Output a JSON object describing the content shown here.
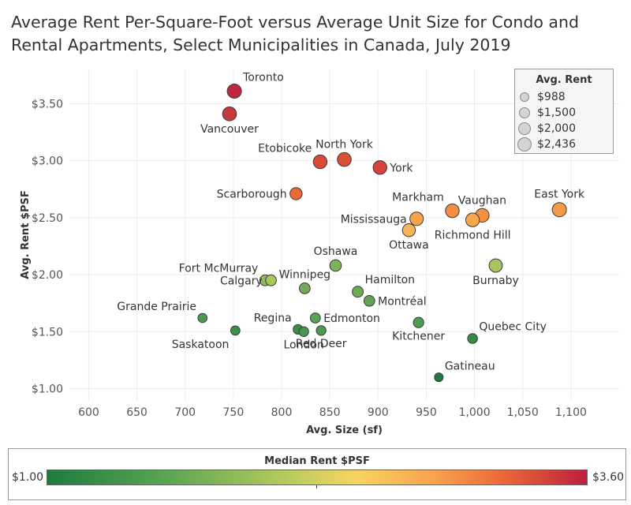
{
  "title": "Average Rent Per-Square-Foot versus Average Unit Size for Condo and Rental Apartments, Select Municipalities in Canada, July 2019",
  "size_legend": {
    "title": "Avg. Rent",
    "items": [
      {
        "label": "$988",
        "value": 988
      },
      {
        "label": "$1,500",
        "value": 1500
      },
      {
        "label": "$2,000",
        "value": 2000
      },
      {
        "label": "$2,436",
        "value": 2436
      }
    ]
  },
  "color_legend": {
    "title": "Median Rent $PSF",
    "min_label": "$1.00",
    "max_label": "$3.60",
    "colors": [
      "#1e7b3e",
      "#5aa552",
      "#b9cc5e",
      "#f7d461",
      "#f8a24d",
      "#ea6638",
      "#bd1f3e"
    ]
  },
  "chart_data": {
    "type": "scatter",
    "title": "Average Rent Per-Square-Foot versus Average Unit Size for Condo and Rental Apartments, Select Municipalities in Canada, July 2019",
    "xlabel": "Avg. Size (sf)",
    "ylabel": "Avg. Rent $PSF",
    "xlim": [
      580,
      1150
    ],
    "ylim": [
      0.9,
      3.8
    ],
    "x_ticks": [
      600,
      650,
      700,
      750,
      800,
      850,
      900,
      950,
      1000,
      1050,
      1100
    ],
    "x_tick_labels": [
      "600",
      "650",
      "700",
      "750",
      "800",
      "850",
      "900",
      "950",
      "1,000",
      "1,050",
      "1,100"
    ],
    "y_ticks": [
      1.0,
      1.5,
      2.0,
      2.5,
      3.0,
      3.5
    ],
    "y_tick_labels": [
      "$1.00",
      "$1.50",
      "$2.00",
      "$2.50",
      "$3.00",
      "$3.50"
    ],
    "grid": true,
    "points": [
      {
        "name": "Toronto",
        "x": 751,
        "y": 3.61,
        "rent": 2436,
        "color": "#c1273c",
        "label_pos": "tr"
      },
      {
        "name": "Vancouver",
        "x": 746,
        "y": 3.41,
        "rent": 2350,
        "color": "#c53a3b",
        "label_pos": "b"
      },
      {
        "name": "Etobicoke",
        "x": 840,
        "y": 2.99,
        "rent": 2300,
        "color": "#d94b38",
        "label_pos": "tl"
      },
      {
        "name": "North York",
        "x": 865,
        "y": 3.01,
        "rent": 2350,
        "color": "#dc4f37",
        "label_pos": "t"
      },
      {
        "name": "York",
        "x": 902,
        "y": 2.94,
        "rent": 2300,
        "color": "#d8413c",
        "label_pos": "r"
      },
      {
        "name": "Scarborough",
        "x": 815,
        "y": 2.71,
        "rent": 1900,
        "color": "#ea6a36",
        "label_pos": "l"
      },
      {
        "name": "Markham",
        "x": 977,
        "y": 2.56,
        "rent": 2300,
        "color": "#f48e42",
        "label_pos": "tl"
      },
      {
        "name": "Vaughan",
        "x": 1008,
        "y": 2.52,
        "rent": 2300,
        "color": "#f4903f",
        "label_pos": "t"
      },
      {
        "name": "East York",
        "x": 1088,
        "y": 2.57,
        "rent": 2436,
        "color": "#f69a44",
        "label_pos": "t"
      },
      {
        "name": "Mississauga",
        "x": 940,
        "y": 2.49,
        "rent": 2250,
        "color": "#f7a447",
        "label_pos": "l"
      },
      {
        "name": "Richmond Hill",
        "x": 998,
        "y": 2.48,
        "rent": 2300,
        "color": "#f8a74a",
        "label_pos": "b"
      },
      {
        "name": "Ottawa",
        "x": 932,
        "y": 2.39,
        "rent": 2100,
        "color": "#f8b457",
        "label_pos": "b"
      },
      {
        "name": "Oshawa",
        "x": 856,
        "y": 2.08,
        "rent": 1750,
        "color": "#7fb05a",
        "label_pos": "t"
      },
      {
        "name": "Burnaby",
        "x": 1022,
        "y": 2.08,
        "rent": 2200,
        "color": "#a9c35e",
        "label_pos": "b"
      },
      {
        "name": "Fort McMurray",
        "x": 783,
        "y": 1.95,
        "rent": 1550,
        "color": "#8dbd5f",
        "label_pos": "tl"
      },
      {
        "name": "Calgary",
        "x": 789,
        "y": 1.95,
        "rent": 1550,
        "color": "#a8c55e",
        "label_pos": "l"
      },
      {
        "name": "Winnipeg",
        "x": 824,
        "y": 1.88,
        "rent": 1550,
        "color": "#74a958",
        "label_pos": "t"
      },
      {
        "name": "Hamilton",
        "x": 879,
        "y": 1.85,
        "rent": 1600,
        "color": "#6caa55",
        "label_pos": "tr"
      },
      {
        "name": "Montréal",
        "x": 891,
        "y": 1.77,
        "rent": 1550,
        "color": "#63a351",
        "label_pos": "r"
      },
      {
        "name": "Grande Prairie",
        "x": 718,
        "y": 1.62,
        "rent": 1100,
        "color": "#4c9a4f",
        "label_pos": "tl"
      },
      {
        "name": "Edmonton",
        "x": 835,
        "y": 1.62,
        "rent": 1350,
        "color": "#5aa352",
        "label_pos": "r"
      },
      {
        "name": "Kitchener",
        "x": 942,
        "y": 1.58,
        "rent": 1450,
        "color": "#4d9d50",
        "label_pos": "b"
      },
      {
        "name": "Regina",
        "x": 817,
        "y": 1.52,
        "rent": 1250,
        "color": "#3a8f48",
        "label_pos": "tl"
      },
      {
        "name": "London",
        "x": 823,
        "y": 1.5,
        "rent": 1250,
        "color": "#469550",
        "label_pos": "b"
      },
      {
        "name": "Red Deer",
        "x": 841,
        "y": 1.51,
        "rent": 1250,
        "color": "#4c9a4f",
        "label_pos": "b"
      },
      {
        "name": "Saskatoon",
        "x": 752,
        "y": 1.51,
        "rent": 1150,
        "color": "#3c8f48",
        "label_pos": "bl"
      },
      {
        "name": "Quebec City",
        "x": 998,
        "y": 1.44,
        "rent": 1300,
        "color": "#348c46",
        "label_pos": "tr"
      },
      {
        "name": "Gatineau",
        "x": 963,
        "y": 1.1,
        "rent": 988,
        "color": "#1f7b3f",
        "label_pos": "tr"
      }
    ]
  }
}
